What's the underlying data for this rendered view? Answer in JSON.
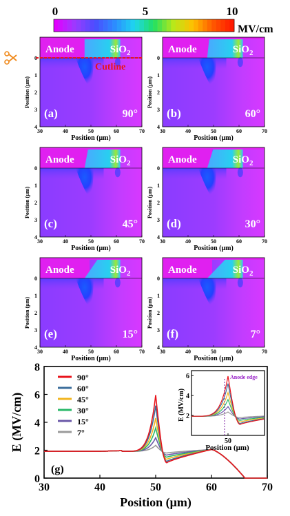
{
  "colorbar": {
    "ticks": [
      "0",
      "5",
      "10"
    ],
    "tick_values": [
      0,
      5,
      10
    ],
    "unit": "MV/cm",
    "colors": [
      "#e000ff",
      "#9a3cff",
      "#4a4cff",
      "#2c8cff",
      "#1ed6f0",
      "#22e060",
      "#b8e81a",
      "#ffc000",
      "#ff5a00",
      "#ff1a00"
    ]
  },
  "panel_axes": {
    "xlabel": "Position (μm)",
    "ylabel": "Position (μm)",
    "xticks": [
      "30",
      "40",
      "50",
      "60",
      "70"
    ],
    "yticks": [
      "0",
      "1",
      "2",
      "3",
      "4"
    ]
  },
  "panels": [
    {
      "id": "a",
      "tag": "(a)",
      "angle": "90°",
      "angle_deg": 90,
      "anode": "Anode",
      "oxide": "SiO",
      "oxide_sub": "2",
      "cutline": "Cutline"
    },
    {
      "id": "b",
      "tag": "(b)",
      "angle": "60°",
      "angle_deg": 60,
      "anode": "Anode",
      "oxide": "SiO",
      "oxide_sub": "2"
    },
    {
      "id": "c",
      "tag": "(c)",
      "angle": "45°",
      "angle_deg": 45,
      "anode": "Anode",
      "oxide": "SiO",
      "oxide_sub": "2"
    },
    {
      "id": "d",
      "tag": "(d)",
      "angle": "30°",
      "angle_deg": 30,
      "anode": "Anode",
      "oxide": "SiO",
      "oxide_sub": "2"
    },
    {
      "id": "e",
      "tag": "(e)",
      "angle": "15°",
      "angle_deg": 15,
      "anode": "Anode",
      "oxide": "SiO",
      "oxide_sub": "2"
    },
    {
      "id": "f",
      "tag": "(f)",
      "angle": "7°",
      "angle_deg": 7,
      "anode": "Anode",
      "oxide": "SiO",
      "oxide_sub": "2"
    }
  ],
  "chart_data": {
    "type": "line",
    "tag": "(g)",
    "xlabel": "Position (μm)",
    "ylabel": "E (MV/cm)",
    "xlim": [
      30,
      70
    ],
    "ylim": [
      0,
      8
    ],
    "xticks": [
      30,
      40,
      50,
      60,
      70
    ],
    "yticks": [
      0,
      2,
      4,
      6,
      8
    ],
    "legend_position": "top-left",
    "series": [
      {
        "name": "90°",
        "color": "#e8141c",
        "peak": 5.95,
        "dip": 1.1
      },
      {
        "name": "60°",
        "color": "#3c6e9c",
        "peak": 5.2,
        "dip": 1.2
      },
      {
        "name": "45°",
        "color": "#f2b41e",
        "peak": 4.3,
        "dip": 1.35
      },
      {
        "name": "30°",
        "color": "#28b868",
        "peak": 3.6,
        "dip": 1.5
      },
      {
        "name": "15°",
        "color": "#6a58a8",
        "peak": 2.9,
        "dip": 1.65
      },
      {
        "name": "7°",
        "color": "#9a9a9a",
        "peak": 2.35,
        "dip": 1.8
      }
    ],
    "base_value": 1.92,
    "second_peak": {
      "x": 60,
      "y": 2.05
    },
    "inset": {
      "xlabel": "Position (μm)",
      "ylabel": "E (MV/cm)",
      "xticks": [
        50
      ],
      "yticks": [
        2,
        4,
        6
      ],
      "annotation": "Anode edge",
      "annotation_x": 50
    }
  }
}
